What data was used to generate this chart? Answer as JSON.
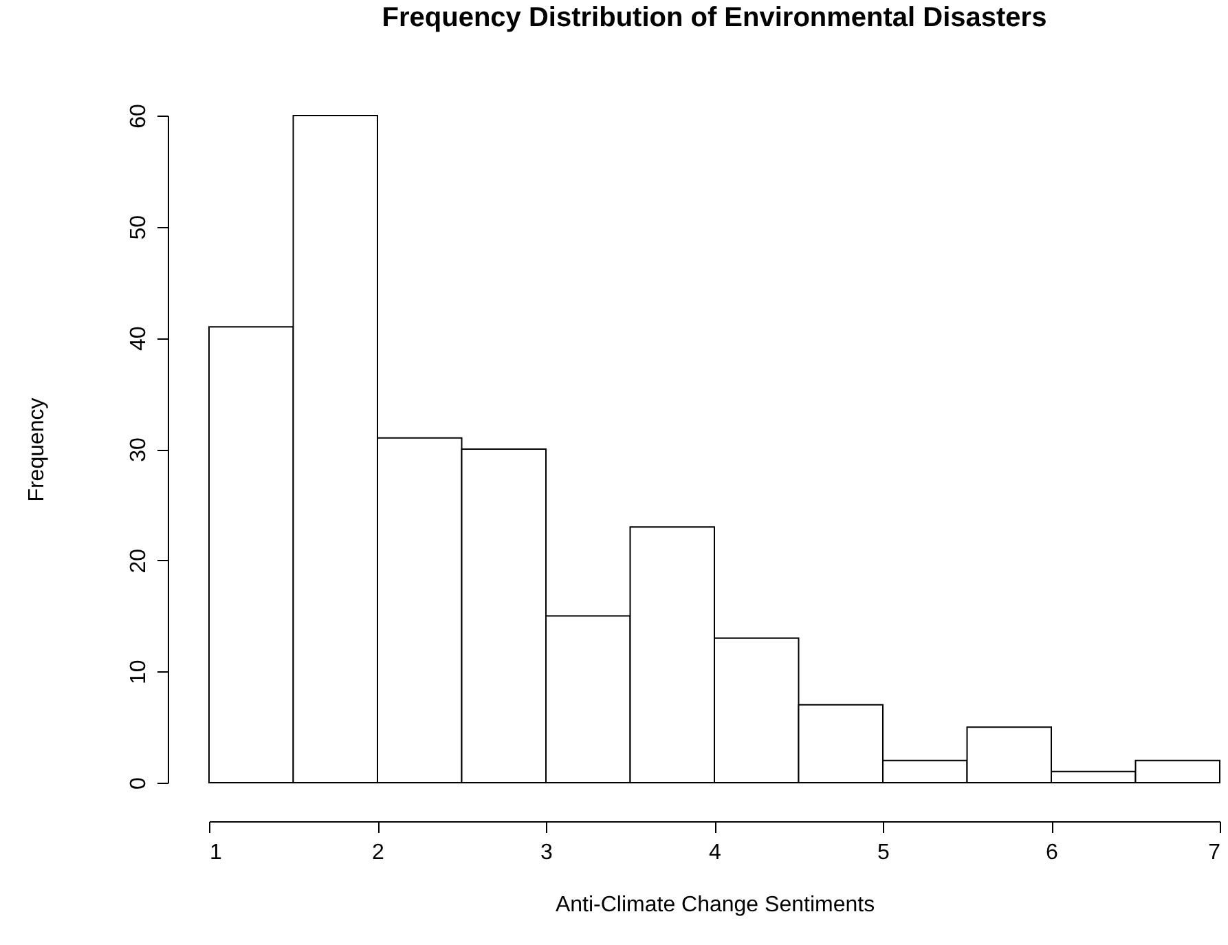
{
  "chart_data": {
    "type": "histogram",
    "title": "Frequency Distribution of Environmental Disasters",
    "xlabel": "Anti-Climate Change Sentiments",
    "ylabel": "Frequency",
    "bins": [
      1,
      1.5,
      2,
      2.5,
      3,
      3.5,
      4,
      4.5,
      5,
      5.5,
      6,
      6.5,
      7
    ],
    "values": [
      41,
      60,
      31,
      30,
      15,
      23,
      13,
      7,
      2,
      5,
      1,
      2
    ],
    "color": "#ffffff",
    "xlim": [
      1,
      7
    ],
    "xticks": [
      1,
      2,
      3,
      4,
      5,
      6,
      7
    ],
    "ylim": [
      0,
      60
    ],
    "yticks": [
      0,
      10,
      20,
      30,
      40,
      50,
      60
    ]
  }
}
